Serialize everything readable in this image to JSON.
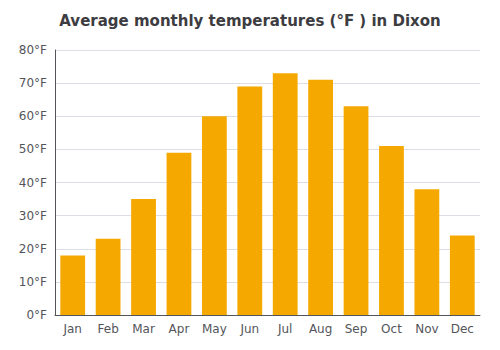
{
  "chart_data": {
    "type": "bar",
    "title": "Average monthly temperatures (°F ) in Dixon",
    "categories": [
      "Jan",
      "Feb",
      "Mar",
      "Apr",
      "May",
      "Jun",
      "Jul",
      "Aug",
      "Sep",
      "Oct",
      "Nov",
      "Dec"
    ],
    "values": [
      18,
      23,
      35,
      49,
      60,
      69,
      73,
      71,
      63,
      51,
      38,
      24
    ],
    "color": "#F5A800",
    "ylim": [
      0,
      80
    ],
    "yticks": [
      {
        "value": 0,
        "label": "0°F"
      },
      {
        "value": 10,
        "label": "10°F"
      },
      {
        "value": 20,
        "label": "20°F"
      },
      {
        "value": 30,
        "label": "30°F"
      },
      {
        "value": 40,
        "label": "40°F"
      },
      {
        "value": 50,
        "label": "50°F"
      },
      {
        "value": 60,
        "label": "60°F"
      },
      {
        "value": 70,
        "label": "70°F"
      },
      {
        "value": 80,
        "label": "80°F"
      }
    ],
    "grid": true
  }
}
